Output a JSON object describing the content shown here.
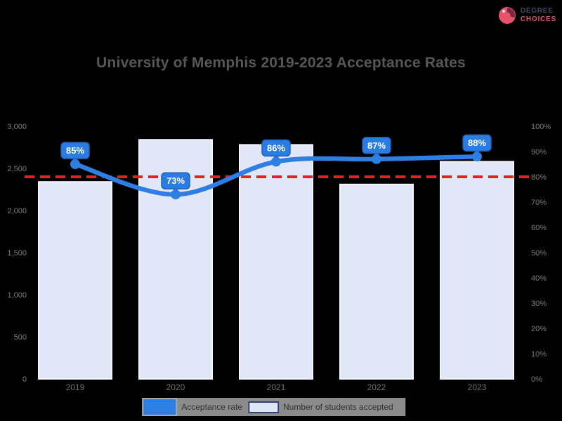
{
  "page": {
    "background": "#000000"
  },
  "header": {
    "logo": {
      "line1": "DEGREE",
      "line2": "CHOICES"
    }
  },
  "title": "University of Memphis 2019-2023 Acceptance Rates",
  "chart_data": {
    "type": "bar",
    "title": "University of Memphis 2019-2023 Acceptance Rates",
    "categories": [
      "2019",
      "2020",
      "2021",
      "2022",
      "2023"
    ],
    "series": [
      {
        "name": "Number of students accepted",
        "type": "bar",
        "axis": "left",
        "values": [
          2340,
          2840,
          2780,
          2310,
          2580
        ]
      },
      {
        "name": "Acceptance rate",
        "type": "line",
        "axis": "right",
        "values": [
          85,
          73,
          86,
          87,
          88
        ]
      }
    ],
    "point_labels": [
      "85%",
      "73%",
      "86%",
      "87%",
      "88%"
    ],
    "reference_line": {
      "value": 80,
      "axis": "right",
      "style": "dashed"
    },
    "left_axis": {
      "range": [
        0,
        3000
      ],
      "ticks": [
        "3,000",
        "2,500",
        "2,000",
        "1,500",
        "1,000",
        "500",
        "0"
      ]
    },
    "right_axis": {
      "range": [
        0,
        100
      ],
      "ticks": [
        "100%",
        "90%",
        "80%",
        "70%",
        "60%",
        "50%",
        "40%",
        "30%",
        "20%",
        "10%",
        "0%"
      ]
    },
    "grid": "off",
    "legend_position": "bottom"
  },
  "legend": {
    "items": [
      {
        "label": "Acceptance rate",
        "swatch": "#2e7fe3",
        "type": "line"
      },
      {
        "label": "Number of students accepted",
        "swatch": "#dfe6f5",
        "type": "bar"
      }
    ]
  },
  "colors": {
    "background": "#000000",
    "title_text": "#575757",
    "bar_fill": "#e1e7f6",
    "bar_border": "#f2f5fb",
    "line": "#2e7fe3",
    "dot": "#2e7fe3",
    "callout_bg": "#2a7ce2",
    "callout_border": "#1d61ba",
    "callout_text": "#ffffff",
    "reference_line": "#e42020",
    "tick_text": "#7d7d7d",
    "x_label_text": "#6f6f6f",
    "legend_bg": "#8c8c8c",
    "legend_text": "#30302f",
    "logo_pink": "#e8526b",
    "logo_dark": "#7a2840"
  }
}
